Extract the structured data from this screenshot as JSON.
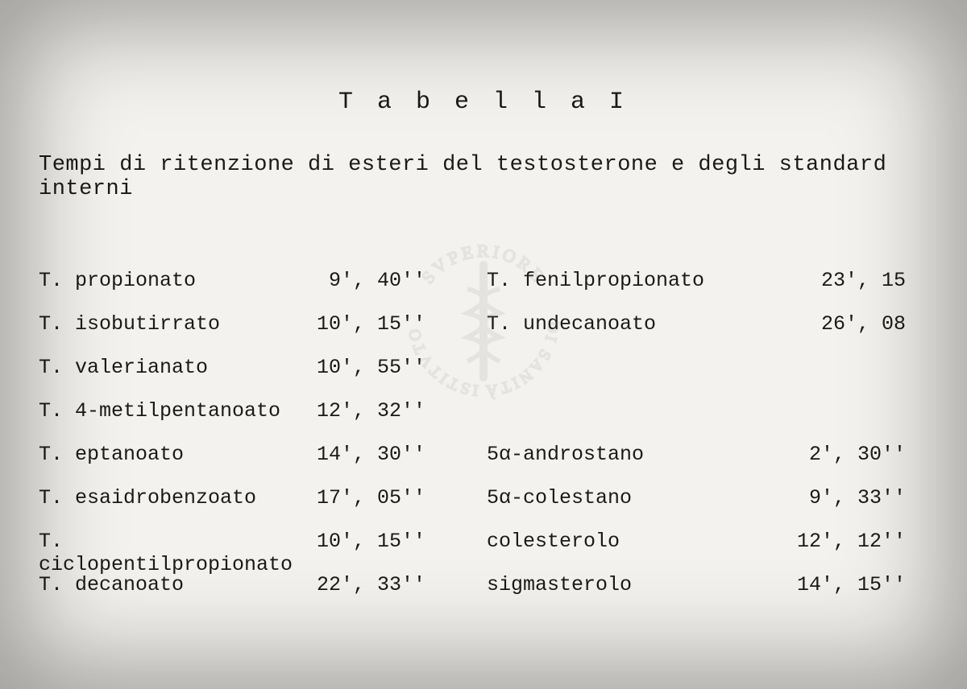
{
  "title": "T a b e l l a   I",
  "subtitle": "Tempi di ritenzione di esteri del testosterone e degli standard interni",
  "left_rows": [
    {
      "label": "T.  propionato",
      "value": "9', 40''"
    },
    {
      "label": "T.  isobutirrato",
      "value": "10', 15''"
    },
    {
      "label": "T.  valerianato",
      "value": "10', 55''"
    },
    {
      "label": "T.  4-metilpentanoato",
      "value": "12', 32''"
    },
    {
      "label": "T.  eptanoato",
      "value": "14', 30''"
    },
    {
      "label": "T.  esaidrobenzoato",
      "value": "17', 05''"
    },
    {
      "label": "T.  ciclopentilpropionato",
      "value": "10', 15''"
    },
    {
      "label": "T.  decanoato",
      "value": "22', 33''"
    }
  ],
  "right_rows": [
    {
      "label": "T. fenilpropionato",
      "value": "23', 15"
    },
    {
      "label": "T. undecanoato",
      "value": "26', 08"
    },
    {
      "label": "",
      "value": ""
    },
    {
      "label": "",
      "value": ""
    },
    {
      "label": "5α-androstano",
      "value": "2', 30''"
    },
    {
      "label": "5α-colestano",
      "value": "9', 33''"
    },
    {
      "label": "colesterolo",
      "value": "12', 12''"
    },
    {
      "label": "sigmasterolo",
      "value": "14', 15''"
    }
  ],
  "colors": {
    "background": "#f4f2ee",
    "text": "#1a1a18",
    "watermark": "#9a9a96"
  },
  "watermark_text_top": "SVPERIORE",
  "watermark_text_left": "ISTITVTO",
  "watermark_text_right": "DI SANITÀ"
}
